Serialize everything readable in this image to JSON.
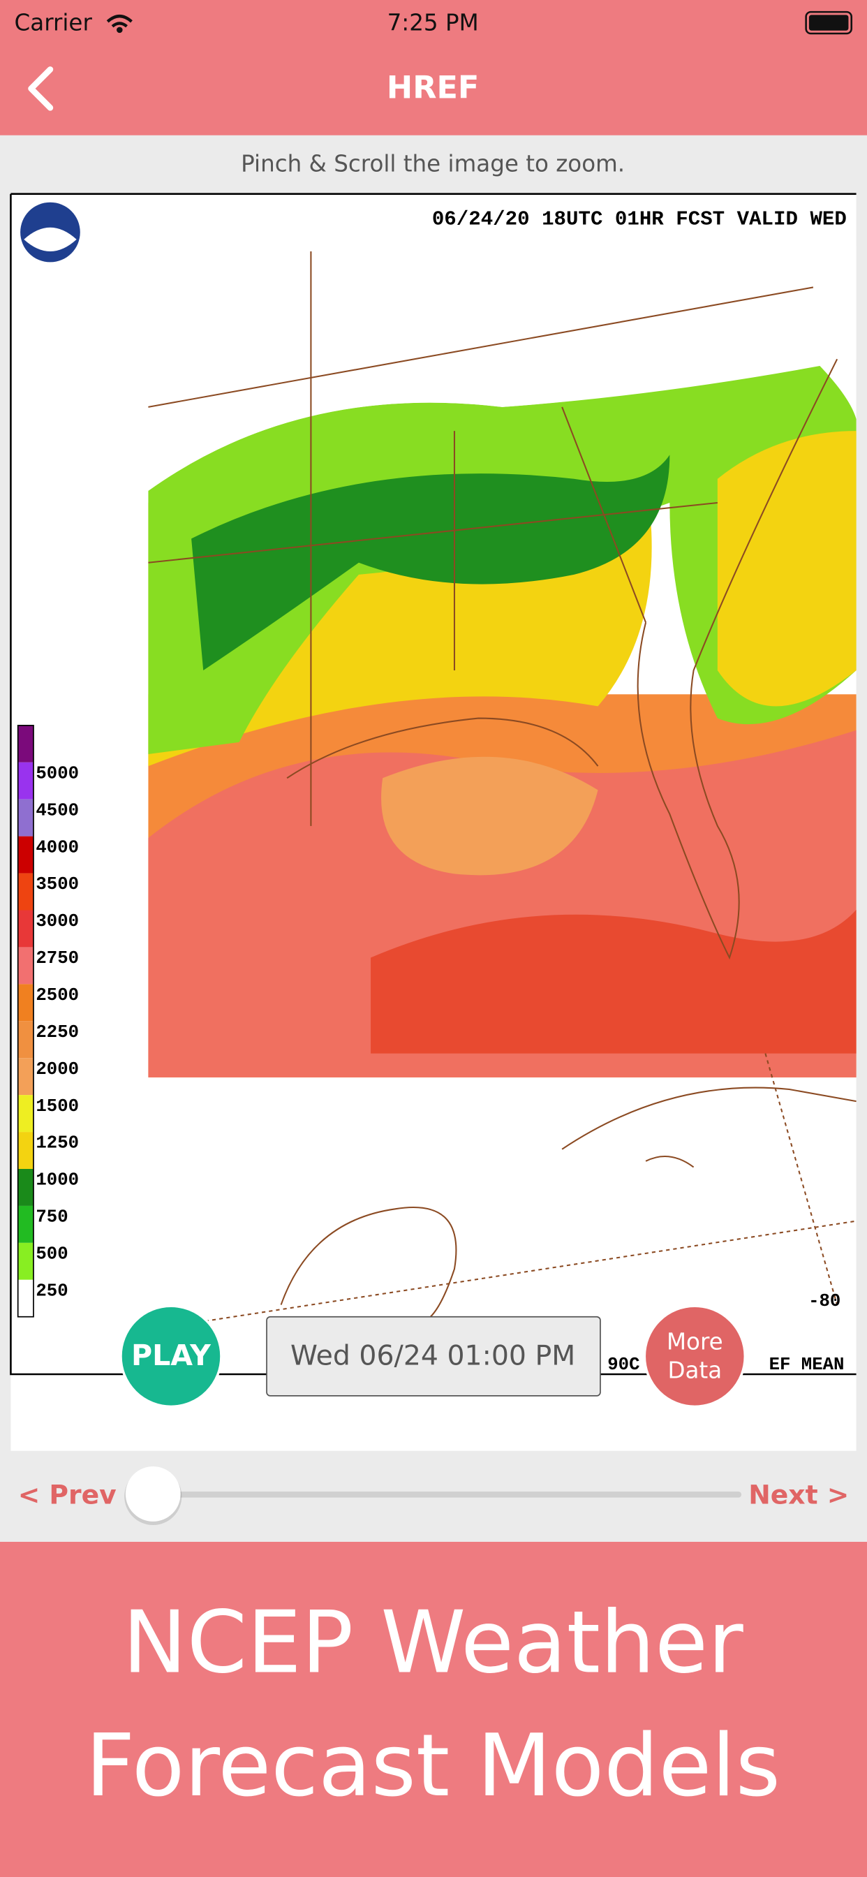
{
  "status_bar": {
    "carrier": "Carrier",
    "time": "7:25 PM"
  },
  "nav": {
    "title": "HREF"
  },
  "hint": "Pinch & Scroll the image to zoom.",
  "map": {
    "header": "06/24/20 18UTC  01HR  FCST VALID WED",
    "legend": [
      "5000",
      "4500",
      "4000",
      "3500",
      "3000",
      "2750",
      "2500",
      "2250",
      "2000",
      "1500",
      "1250",
      "1000",
      "750",
      "500",
      "250"
    ],
    "longitude_label": "-80",
    "footer_left": "90C",
    "footer_right": "EF MEAN"
  },
  "controls": {
    "play": "PLAY",
    "timestamp": "Wed 06/24 01:00 PM",
    "more_data": [
      "More",
      "Data"
    ]
  },
  "slider": {
    "prev": "< Prev",
    "next": "Next >"
  },
  "banner": [
    "NCEP Weather",
    "Forecast Models"
  ]
}
